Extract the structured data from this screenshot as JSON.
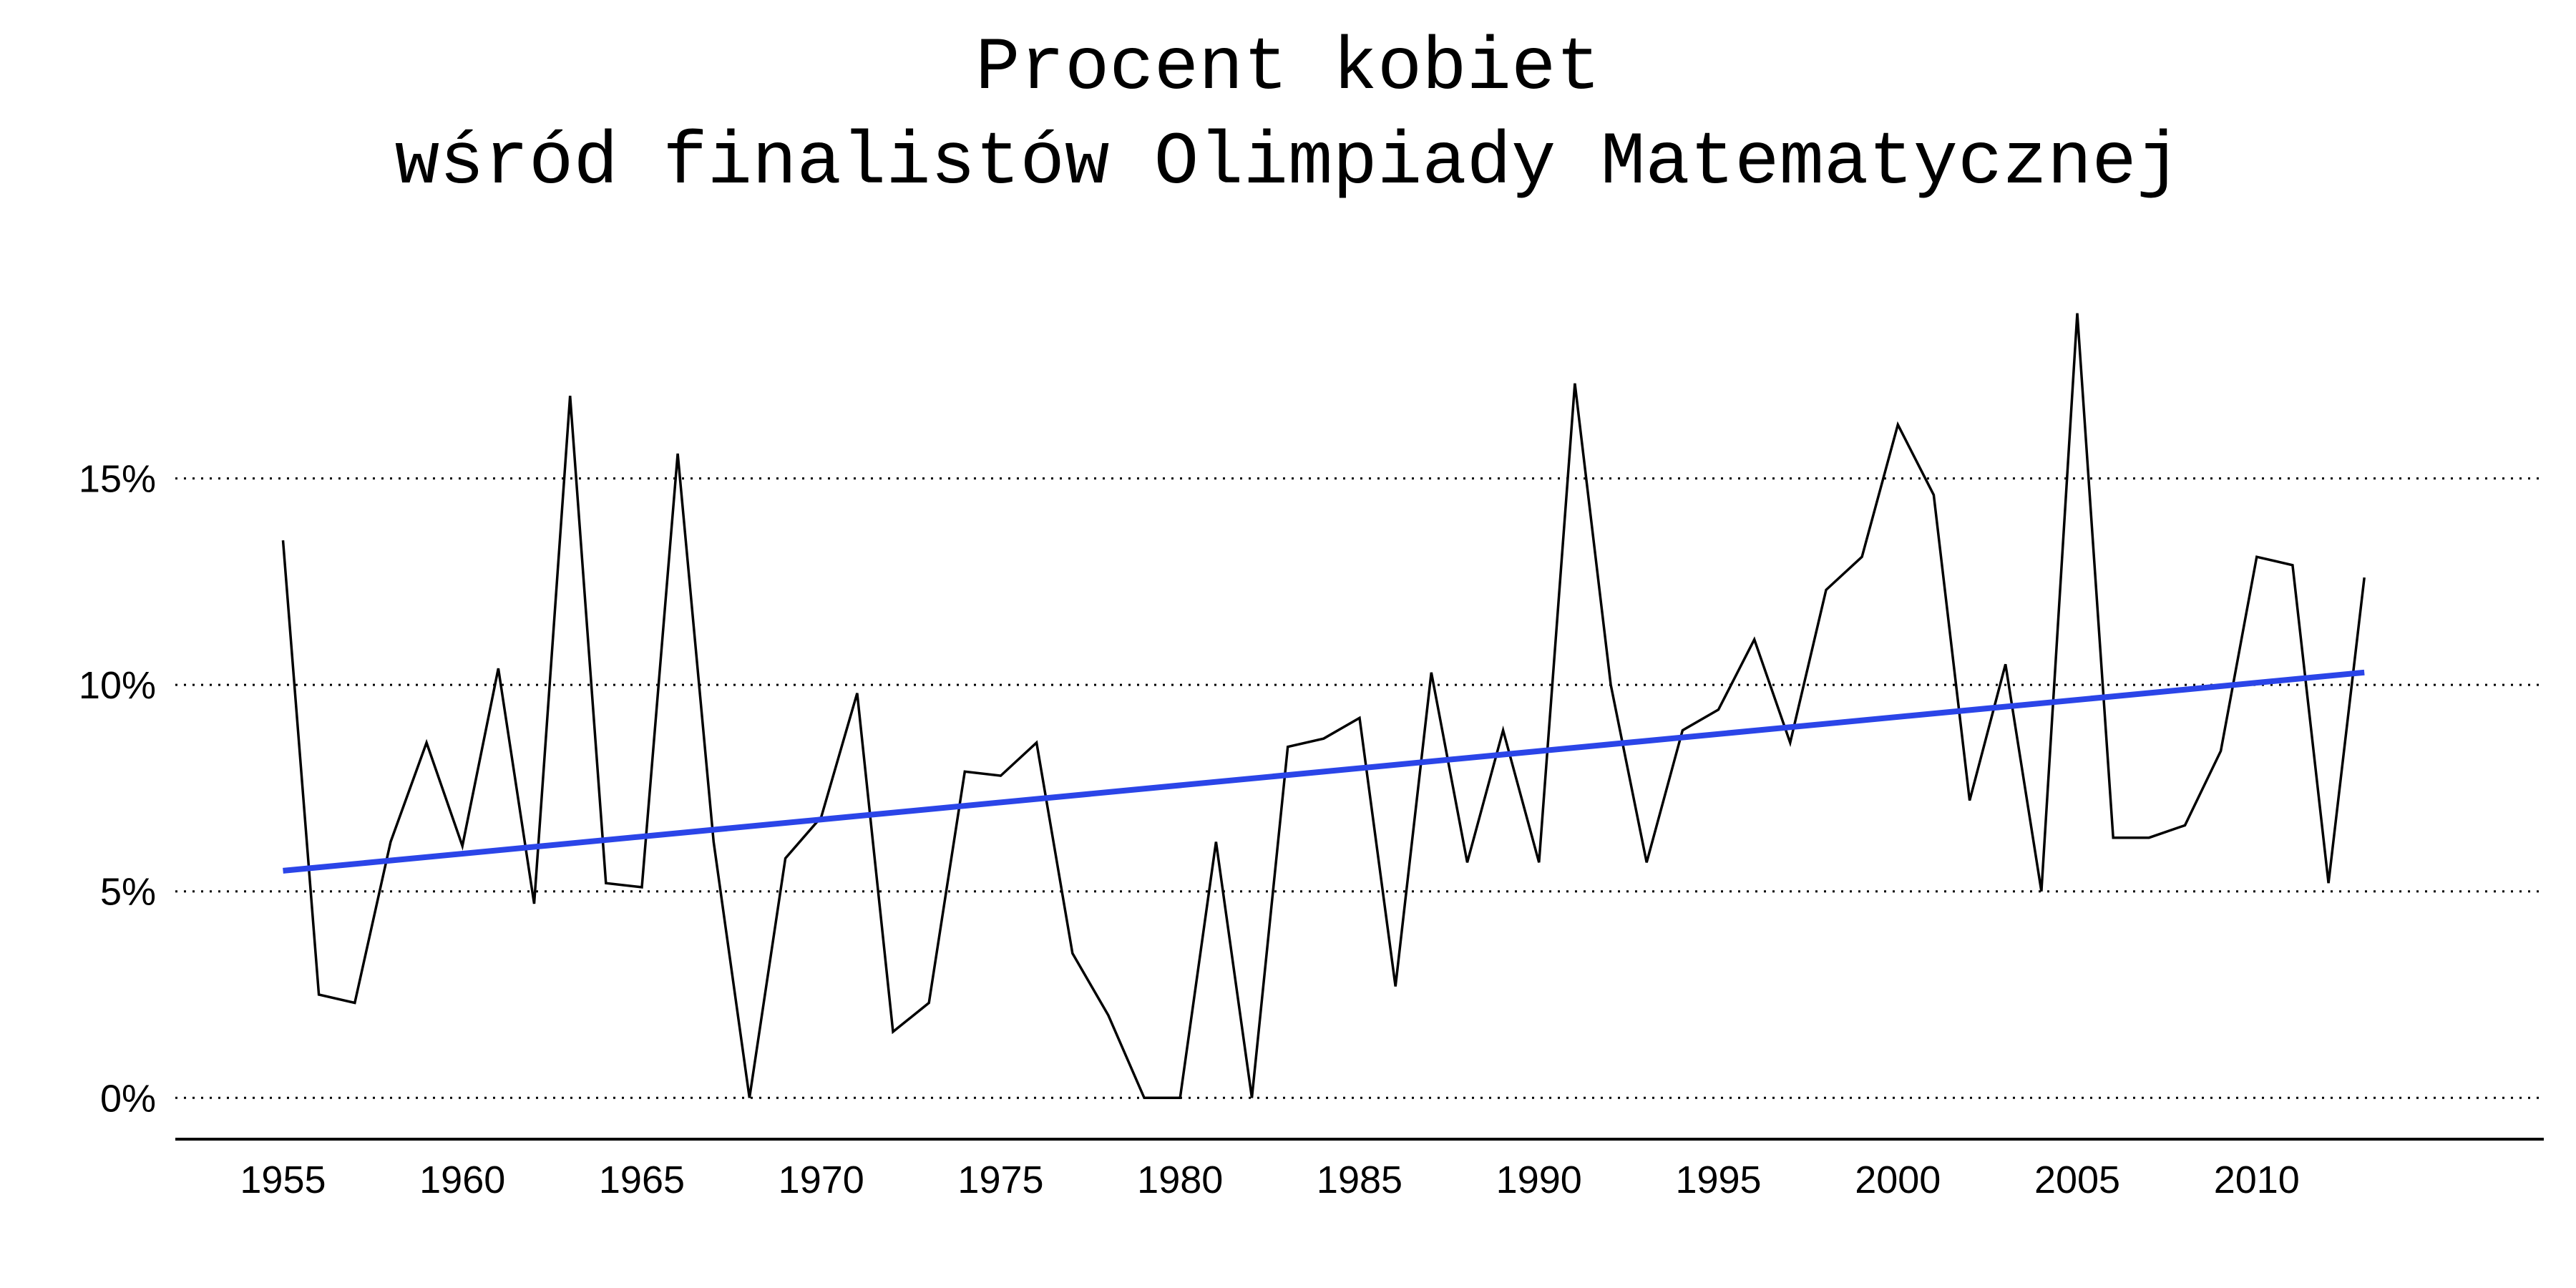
{
  "title_lines": [
    "Procent kobiet",
    "wśród finalistów Olimpiady Matematycznej"
  ],
  "colors": {
    "data_line": "#000000",
    "trend_line": "#2b45e8",
    "grid": "#000000",
    "axis": "#000000"
  },
  "chart_data": {
    "type": "line",
    "title": "Procent kobiet wśród finalistów Olimpiady Matematycznej",
    "xlabel": "",
    "ylabel": "",
    "xlim": [
      1952,
      2018
    ],
    "ylim": [
      -1,
      20
    ],
    "grid": "horizontal-dotted",
    "x_ticks": [
      1955,
      1960,
      1965,
      1970,
      1975,
      1980,
      1985,
      1990,
      1995,
      2000,
      2005,
      2010
    ],
    "y_ticks": [
      0,
      5,
      10,
      15
    ],
    "y_tick_labels": [
      "0%",
      "5%",
      "10%",
      "15%"
    ],
    "series": [
      {
        "x": [
          1955,
          1956,
          1957,
          1958,
          1959,
          1960,
          1961,
          1962,
          1963,
          1964,
          1965,
          1966,
          1967,
          1968,
          1969,
          1970,
          1971,
          1972,
          1973,
          1974,
          1975,
          1976,
          1977,
          1978,
          1979,
          1980,
          1981,
          1982,
          1983,
          1984,
          1985,
          1986,
          1987,
          1988,
          1989,
          1990,
          1991,
          1992,
          1993,
          1994,
          1995,
          1996,
          1997,
          1998,
          1999,
          2000,
          2001,
          2002,
          2003,
          2004,
          2005,
          2006,
          2007,
          2008,
          2009,
          2010,
          2011,
          2012,
          2013
        ],
        "values": [
          13.5,
          2.5,
          2.3,
          6.2,
          8.6,
          6.1,
          10.4,
          4.7,
          17.0,
          5.2,
          5.1,
          15.6,
          6.2,
          0,
          5.8,
          6.8,
          9.8,
          1.6,
          2.3,
          7.9,
          7.8,
          8.6,
          3.5,
          2.0,
          0,
          0,
          6.2,
          0,
          8.5,
          8.7,
          9.2,
          2.7,
          10.3,
          5.7,
          8.9,
          5.7,
          17.3,
          10.0,
          5.7,
          8.9,
          9.4,
          11.1,
          8.6,
          12.3,
          13.1,
          16.3,
          14.6,
          7.2,
          10.5,
          5.0,
          19.0,
          6.3,
          6.3,
          6.6,
          8.4,
          13.1,
          12.9,
          5.2,
          12.6
        ]
      },
      {
        "x": [
          1955,
          2013
        ],
        "values": [
          5.5,
          10.3
        ]
      }
    ]
  }
}
